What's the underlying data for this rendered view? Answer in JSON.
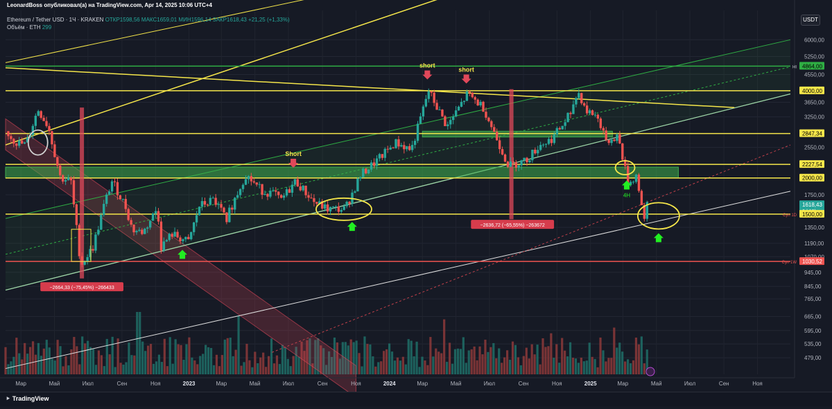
{
  "header": {
    "published_by": "LeonardBoss опубликовал(а) на TradingView.com, Apr 14, 2025 10:06 UTC+4",
    "symbol": "Ethereum / Tether USD · 1Ч · KRAKEN",
    "ohlc": "ОТКР1598,56  МАКС1659,01  МИН1596,14  ЗАКР1618,43  +21,25 (+1,33%)",
    "volume_label": "Объём · ETH",
    "volume_value": "299"
  },
  "currency_button": "USDT",
  "footer": {
    "brand": "TradingView"
  },
  "colors": {
    "background": "#161a25",
    "bull": "#26a69a",
    "bear": "#ef5350",
    "yellow": "#f5e64a",
    "green_line": "#2fae44",
    "red_zone": "#e0485a",
    "green_zone": "#3fae4f"
  },
  "chart_data": {
    "type": "candlestick",
    "symbol": "ETH/USDT",
    "exchange": "KRAKEN",
    "y_scale": "log",
    "ylim": [
      420,
      6600
    ],
    "x_range": [
      "2022-02-01",
      "2025-12-31"
    ],
    "price_ticks": [
      {
        "value": 6000,
        "label": "6000,00"
      },
      {
        "value": 5250,
        "label": "5250,00"
      },
      {
        "value": 4550,
        "label": "4550,00"
      },
      {
        "value": 3650,
        "label": "3650,00"
      },
      {
        "value": 3250,
        "label": "3250,00"
      },
      {
        "value": 2550,
        "label": "2550,00"
      },
      {
        "value": 1750,
        "label": "1750,00"
      },
      {
        "value": 1350,
        "label": "1350,00"
      },
      {
        "value": 1190,
        "label": "1190,00"
      },
      {
        "value": 1070,
        "label": "1070,00"
      },
      {
        "value": 945,
        "label": "945,00"
      },
      {
        "value": 845,
        "label": "845,00"
      },
      {
        "value": 765,
        "label": "765,00"
      },
      {
        "value": 665,
        "label": "665,00"
      },
      {
        "value": 595,
        "label": "595,00"
      },
      {
        "value": 535,
        "label": "535,00"
      },
      {
        "value": 479,
        "label": "479,00"
      }
    ],
    "price_labels": [
      {
        "value": 4864,
        "label": "4864,00",
        "color": "#2fae44",
        "text_color": "#000000",
        "side_label": "HI",
        "side_color": "#d1d4dc"
      },
      {
        "value": 4000,
        "label": "4000,00",
        "color": "#f5e64a",
        "text_color": "#000000",
        "side_label": "",
        "side_color": "#d1d4dc"
      },
      {
        "value": 2847.34,
        "label": "2847,34",
        "color": "#f5e64a",
        "text_color": "#000000",
        "side_label": "",
        "side_color": "#d1d4dc"
      },
      {
        "value": 2227.54,
        "label": "2227,54",
        "color": "#f5e64a",
        "text_color": "#000000",
        "side_label": "",
        "side_color": "#d1d4dc"
      },
      {
        "value": 2000,
        "label": "2000,00",
        "color": "#f5e64a",
        "text_color": "#000000",
        "side_label": "",
        "side_color": "#d1d4dc"
      },
      {
        "value": 1618.43,
        "label": "1618,43",
        "sub_label": "6d 18h",
        "color": "#26a69a",
        "text_color": "#ffffff",
        "side_label": "",
        "side_color": "#d1d4dc"
      },
      {
        "value": 1500,
        "label": "1500,00",
        "color": "#f5e64a",
        "text_color": "#000000",
        "side_label": "Cyn 1D",
        "side_color": "#ef5350"
      },
      {
        "value": 1030.52,
        "label": "1030,52",
        "color": "#ef5350",
        "text_color": "#ffffff",
        "side_label": "Cyn 1W",
        "side_color": "#ef5350"
      }
    ],
    "x_ticks": [
      {
        "date": "2022-03-01",
        "label": "Мар",
        "bold": false
      },
      {
        "date": "2022-05-01",
        "label": "Май",
        "bold": false
      },
      {
        "date": "2022-07-01",
        "label": "Июл",
        "bold": false
      },
      {
        "date": "2022-09-01",
        "label": "Сен",
        "bold": false
      },
      {
        "date": "2022-11-01",
        "label": "Ноя",
        "bold": false
      },
      {
        "date": "2023-01-01",
        "label": "2023",
        "bold": true
      },
      {
        "date": "2023-03-01",
        "label": "Мар",
        "bold": false
      },
      {
        "date": "2023-05-01",
        "label": "Май",
        "bold": false
      },
      {
        "date": "2023-07-01",
        "label": "Июл",
        "bold": false
      },
      {
        "date": "2023-09-01",
        "label": "Сен",
        "bold": false
      },
      {
        "date": "2023-11-01",
        "label": "Ноя",
        "bold": false
      },
      {
        "date": "2024-01-01",
        "label": "2024",
        "bold": true
      },
      {
        "date": "2024-03-01",
        "label": "Мар",
        "bold": false
      },
      {
        "date": "2024-05-01",
        "label": "Май",
        "bold": false
      },
      {
        "date": "2024-07-01",
        "label": "Июл",
        "bold": false
      },
      {
        "date": "2024-09-01",
        "label": "Сен",
        "bold": false
      },
      {
        "date": "2024-11-01",
        "label": "Ноя",
        "bold": false
      },
      {
        "date": "2025-01-01",
        "label": "2025",
        "bold": true
      },
      {
        "date": "2025-03-01",
        "label": "Мар",
        "bold": false
      },
      {
        "date": "2025-05-01",
        "label": "Май",
        "bold": false
      },
      {
        "date": "2025-07-01",
        "label": "Июл",
        "bold": false
      },
      {
        "date": "2025-09-01",
        "label": "Сен",
        "bold": false
      },
      {
        "date": "2025-11-01",
        "label": "Ноя",
        "bold": false
      }
    ],
    "price_path": [
      [
        "2022-02-01",
        2900
      ],
      [
        "2022-02-20",
        2650
      ],
      [
        "2022-03-10",
        2600
      ],
      [
        "2022-04-01",
        3450
      ],
      [
        "2022-04-20",
        3000
      ],
      [
        "2022-05-12",
        2000
      ],
      [
        "2022-05-31",
        1950
      ],
      [
        "2022-06-18",
        1000
      ],
      [
        "2022-07-10",
        1150
      ],
      [
        "2022-08-01",
        1650
      ],
      [
        "2022-08-14",
        1950
      ],
      [
        "2022-09-07",
        1600
      ],
      [
        "2022-09-20",
        1320
      ],
      [
        "2022-10-10",
        1300
      ],
      [
        "2022-11-05",
        1580
      ],
      [
        "2022-11-10",
        1150
      ],
      [
        "2022-12-01",
        1280
      ],
      [
        "2022-12-31",
        1200
      ],
      [
        "2023-01-20",
        1600
      ],
      [
        "2023-02-15",
        1680
      ],
      [
        "2023-03-10",
        1450
      ],
      [
        "2023-04-14",
        2050
      ],
      [
        "2023-05-15",
        1800
      ],
      [
        "2023-06-10",
        1750
      ],
      [
        "2023-06-15",
        1650
      ],
      [
        "2023-07-14",
        1950
      ],
      [
        "2023-08-17",
        1650
      ],
      [
        "2023-09-10",
        1560
      ],
      [
        "2023-10-12",
        1560
      ],
      [
        "2023-11-10",
        2050
      ],
      [
        "2023-12-10",
        2300
      ],
      [
        "2024-01-12",
        2650
      ],
      [
        "2024-02-10",
        2500
      ],
      [
        "2024-03-12",
        4000
      ],
      [
        "2024-04-15",
        3000
      ],
      [
        "2024-05-22",
        3900
      ],
      [
        "2024-06-20",
        3500
      ],
      [
        "2024-07-05",
        3000
      ],
      [
        "2024-08-05",
        2200
      ],
      [
        "2024-09-06",
        2300
      ],
      [
        "2024-10-01",
        2600
      ],
      [
        "2024-10-20",
        2700
      ],
      [
        "2024-11-15",
        3100
      ],
      [
        "2024-12-10",
        3950
      ],
      [
        "2024-12-25",
        3400
      ],
      [
        "2025-01-10",
        3300
      ],
      [
        "2025-02-03",
        2700
      ],
      [
        "2025-02-20",
        2800
      ],
      [
        "2025-03-11",
        1900
      ],
      [
        "2025-03-26",
        2050
      ],
      [
        "2025-04-09",
        1400
      ],
      [
        "2025-04-14",
        1618.43
      ]
    ],
    "volume_scale_max": 100,
    "zones": [
      {
        "type": "green_box",
        "x": [
          "2022-02-01",
          "2025-06-10"
        ],
        "y": [
          2000,
          2180
        ]
      },
      {
        "type": "green_box",
        "x": [
          "2024-03-01",
          "2025-02-10"
        ],
        "y": [
          2770,
          2900
        ]
      },
      {
        "type": "red_channel",
        "top": [
          [
            "2022-02-01",
            3200
          ],
          [
            "2023-11-01",
            450
          ]
        ],
        "bottom": [
          [
            "2022-02-01",
            2500
          ],
          [
            "2023-11-01",
            350
          ]
        ]
      },
      {
        "type": "green_channel",
        "top": [
          [
            "2022-02-01",
            1450
          ],
          [
            "2025-12-31",
            6000
          ]
        ],
        "bottom": [
          [
            "2022-02-01",
            820
          ],
          [
            "2025-12-31",
            3900
          ]
        ]
      },
      {
        "type": "red_bar",
        "x": "2022-06-20",
        "y": [
          900,
          3500
        ]
      },
      {
        "type": "red_bar",
        "x": "2024-08-10",
        "y": [
          1440,
          4050
        ]
      }
    ],
    "h_lines": [
      {
        "value": 4864,
        "color": "#2fae44"
      },
      {
        "value": 4000,
        "color": "#f5e64a"
      },
      {
        "value": 2847.34,
        "color": "#f5e64a"
      },
      {
        "value": 2227.54,
        "color": "#f5e64a"
      },
      {
        "value": 2000,
        "color": "#f5e64a"
      },
      {
        "value": 1500,
        "color": "#f5e64a"
      },
      {
        "value": 1030.52,
        "color": "#ef5350"
      }
    ],
    "trend_lines": [
      {
        "from": [
          "2022-02-01",
          5000
        ],
        "to": [
          "2023-11-01",
          9000
        ],
        "color": "#f5e64a",
        "width": 1
      },
      {
        "from": [
          "2022-02-01",
          4800
        ],
        "to": [
          "2025-09-20",
          3500
        ],
        "color": "#f5e64a",
        "width": 1.5
      },
      {
        "from": [
          "2022-02-01",
          2600
        ],
        "to": [
          "2024-07-01",
          9500
        ],
        "color": "#f5e64a",
        "width": 1.5
      },
      {
        "from": [
          "2022-02-01",
          440
        ],
        "to": [
          "2025-12-31",
          1800
        ],
        "color": "#e0e0e0",
        "width": 1
      }
    ],
    "annotations": [
      {
        "text": "short",
        "date": "2024-03-10",
        "price": 4700,
        "arrow": "down",
        "color": "#f5e64a",
        "arrow_color": "#e0485a"
      },
      {
        "text": "short",
        "date": "2024-05-20",
        "price": 4550,
        "arrow": "down",
        "color": "#f5e64a",
        "arrow_color": "#e0485a"
      },
      {
        "text": "Short",
        "date": "2023-07-10",
        "price": 2330,
        "arrow": "down",
        "color": "#f5e64a",
        "arrow_color": "#e0485a"
      },
      {
        "text": "",
        "date": "2022-12-20",
        "price": 1130,
        "arrow": "up",
        "color": "#f5e64a",
        "arrow_color": "#22ee22"
      },
      {
        "text": "",
        "date": "2023-10-25",
        "price": 1410,
        "arrow": "up",
        "color": "#f5e64a",
        "arrow_color": "#22ee22"
      },
      {
        "text": "4H",
        "date": "2025-03-08",
        "price": 1960,
        "arrow": "up",
        "color": "#22ee22",
        "arrow_color": "#22ee22"
      },
      {
        "text": "",
        "date": "2025-05-05",
        "price": 1290,
        "arrow": "up",
        "color": "#f5e64a",
        "arrow_color": "#22ee22"
      }
    ],
    "measure_labels": [
      {
        "text": "−2664,33 (−75,45%) −266433",
        "date": "2022-06-20",
        "price": 840
      },
      {
        "text": "−2636,72 (−65,55%) −263672",
        "date": "2024-08-12",
        "price": 1380
      }
    ]
  }
}
